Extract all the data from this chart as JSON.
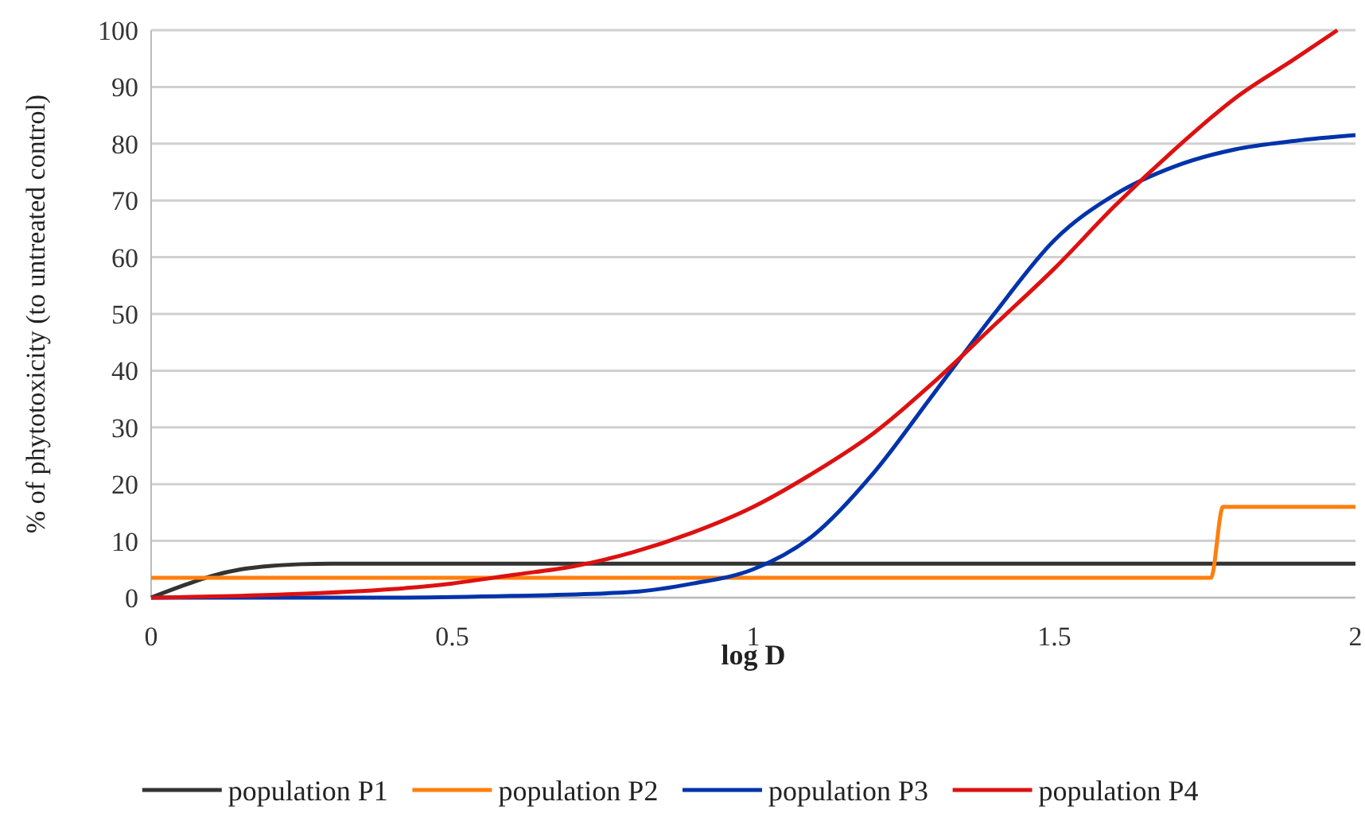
{
  "chart_data": {
    "type": "line",
    "xlabel": "log D",
    "ylabel": "% of phytotoxicity (to untreated control)",
    "xlim": [
      0,
      2
    ],
    "xticks": [
      0,
      0.5,
      1,
      1.5,
      2
    ],
    "ylim": [
      0,
      100
    ],
    "yticks": [
      0,
      10,
      20,
      30,
      40,
      50,
      60,
      70,
      80,
      90,
      100
    ],
    "grid": "y",
    "legend": "bottom",
    "marker": "none",
    "line_style": "solid",
    "series": [
      {
        "name": "population P1",
        "color": "#333333",
        "x": [
          0,
          0.05,
          0.1,
          0.15,
          0.2,
          0.25,
          0.3,
          0.5,
          1,
          1.5,
          2
        ],
        "values": [
          0,
          2,
          3.8,
          5,
          5.6,
          5.9,
          6,
          6,
          6,
          6,
          6
        ]
      },
      {
        "name": "population P2",
        "color": "#ff7f0e",
        "x": [
          0,
          1.76,
          1.78,
          2
        ],
        "values": [
          3.5,
          3.5,
          16,
          16
        ]
      },
      {
        "name": "population P3",
        "color": "#0033aa",
        "x": [
          0,
          0.4,
          0.6,
          0.8,
          0.9,
          1,
          1.1,
          1.2,
          1.3,
          1.4,
          1.5,
          1.6,
          1.7,
          1.8,
          1.9,
          2
        ],
        "values": [
          0,
          0,
          0.3,
          1,
          2.5,
          5,
          11,
          22,
          36,
          50,
          63,
          71,
          76,
          79,
          80.5,
          81.5
        ]
      },
      {
        "name": "population P4",
        "color": "#dd1111",
        "x": [
          0,
          0.2,
          0.4,
          0.5,
          0.6,
          0.7,
          0.8,
          0.9,
          1,
          1.1,
          1.2,
          1.3,
          1.4,
          1.5,
          1.6,
          1.7,
          1.8,
          1.9,
          1.97
        ],
        "values": [
          0,
          0.5,
          1.5,
          2.5,
          4,
          5.5,
          8,
          11.5,
          16,
          22,
          29,
          38,
          48,
          58,
          69,
          79,
          88,
          95,
          100
        ]
      }
    ]
  }
}
